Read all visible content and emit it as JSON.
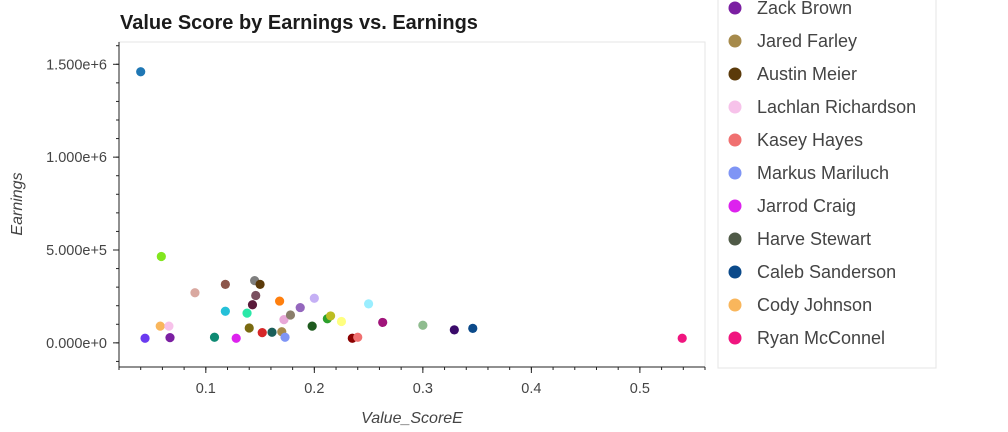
{
  "chart_data": {
    "type": "scatter",
    "title": "Value Score by Earnings vs. Earnings",
    "xlabel": "Value_ScoreE",
    "ylabel": "Earnings",
    "xlim": [
      0.02,
      0.56
    ],
    "ylim": [
      -130000,
      1620000
    ],
    "xticks": [
      0.1,
      0.2,
      0.3,
      0.4,
      0.5
    ],
    "xtick_labels": [
      "0.1",
      "0.2",
      "0.3",
      "0.4",
      "0.5"
    ],
    "yticks": [
      0,
      500000,
      1000000,
      1500000
    ],
    "ytick_labels": [
      "0.000e+0",
      "5.000e+5",
      "1.000e+6",
      "1.500e+6"
    ],
    "grid": false,
    "legend_position": "right",
    "legend": [
      {
        "name": "Zack Brown",
        "color": "#7B1FA2"
      },
      {
        "name": "Jared Farley",
        "color": "#A68A4B"
      },
      {
        "name": "Austin Meier",
        "color": "#5B3A0A"
      },
      {
        "name": "Lachlan Richardson",
        "color": "#F7C2EA"
      },
      {
        "name": "Kasey Hayes",
        "color": "#F07070"
      },
      {
        "name": "Markus Mariluch",
        "color": "#7F95F5"
      },
      {
        "name": "Jarrod Craig",
        "color": "#DD22EE"
      },
      {
        "name": "Harve Stewart",
        "color": "#4F5A47"
      },
      {
        "name": "Caleb Sanderson",
        "color": "#0B4A8A"
      },
      {
        "name": "Cody Johnson",
        "color": "#F9B65C"
      },
      {
        "name": "Ryan McConnel",
        "color": "#F0157F"
      }
    ],
    "points": [
      {
        "x": 0.04,
        "y": 1460000,
        "color": "#1F77B4"
      },
      {
        "x": 0.059,
        "y": 465000,
        "color": "#82E61E"
      },
      {
        "x": 0.044,
        "y": 25000,
        "color": "#6A3AF0"
      },
      {
        "x": 0.058,
        "y": 90000,
        "color": "#F9B65C"
      },
      {
        "x": 0.066,
        "y": 90000,
        "color": "#F7C2EA"
      },
      {
        "x": 0.067,
        "y": 28000,
        "color": "#7B1FA2"
      },
      {
        "x": 0.09,
        "y": 270000,
        "color": "#D9A8A0"
      },
      {
        "x": 0.108,
        "y": 30000,
        "color": "#0E8A73"
      },
      {
        "x": 0.118,
        "y": 170000,
        "color": "#25C0D8"
      },
      {
        "x": 0.118,
        "y": 315000,
        "color": "#8C564B"
      },
      {
        "x": 0.128,
        "y": 25000,
        "color": "#DD22EE"
      },
      {
        "x": 0.138,
        "y": 160000,
        "color": "#2AE8A8"
      },
      {
        "x": 0.14,
        "y": 80000,
        "color": "#7A6A10"
      },
      {
        "x": 0.143,
        "y": 205000,
        "color": "#5A1A3A"
      },
      {
        "x": 0.145,
        "y": 335000,
        "color": "#7F7F7F"
      },
      {
        "x": 0.146,
        "y": 255000,
        "color": "#7A5060"
      },
      {
        "x": 0.15,
        "y": 315000,
        "color": "#5B3A0A"
      },
      {
        "x": 0.152,
        "y": 55000,
        "color": "#D62728"
      },
      {
        "x": 0.161,
        "y": 57000,
        "color": "#1A5F5A"
      },
      {
        "x": 0.168,
        "y": 225000,
        "color": "#FF7F0E"
      },
      {
        "x": 0.17,
        "y": 60000,
        "color": "#A68A4B"
      },
      {
        "x": 0.172,
        "y": 125000,
        "color": "#E8A8D8"
      },
      {
        "x": 0.173,
        "y": 30000,
        "color": "#7F95F5"
      },
      {
        "x": 0.178,
        "y": 150000,
        "color": "#8A7E6B"
      },
      {
        "x": 0.187,
        "y": 190000,
        "color": "#9467BD"
      },
      {
        "x": 0.198,
        "y": 90000,
        "color": "#1E5A1E"
      },
      {
        "x": 0.2,
        "y": 240000,
        "color": "#C5B0F5"
      },
      {
        "x": 0.212,
        "y": 130000,
        "color": "#2CA02C"
      },
      {
        "x": 0.215,
        "y": 145000,
        "color": "#BCBD22"
      },
      {
        "x": 0.225,
        "y": 115000,
        "color": "#FFFF80"
      },
      {
        "x": 0.235,
        "y": 25000,
        "color": "#8B0000"
      },
      {
        "x": 0.24,
        "y": 30000,
        "color": "#F07070"
      },
      {
        "x": 0.25,
        "y": 210000,
        "color": "#9AEEFF"
      },
      {
        "x": 0.263,
        "y": 110000,
        "color": "#A0147A"
      },
      {
        "x": 0.3,
        "y": 95000,
        "color": "#8FBC8F"
      },
      {
        "x": 0.329,
        "y": 70000,
        "color": "#3A0A6A"
      },
      {
        "x": 0.346,
        "y": 78000,
        "color": "#0B4A8A"
      },
      {
        "x": 0.539,
        "y": 25000,
        "color": "#F0157F"
      }
    ]
  }
}
